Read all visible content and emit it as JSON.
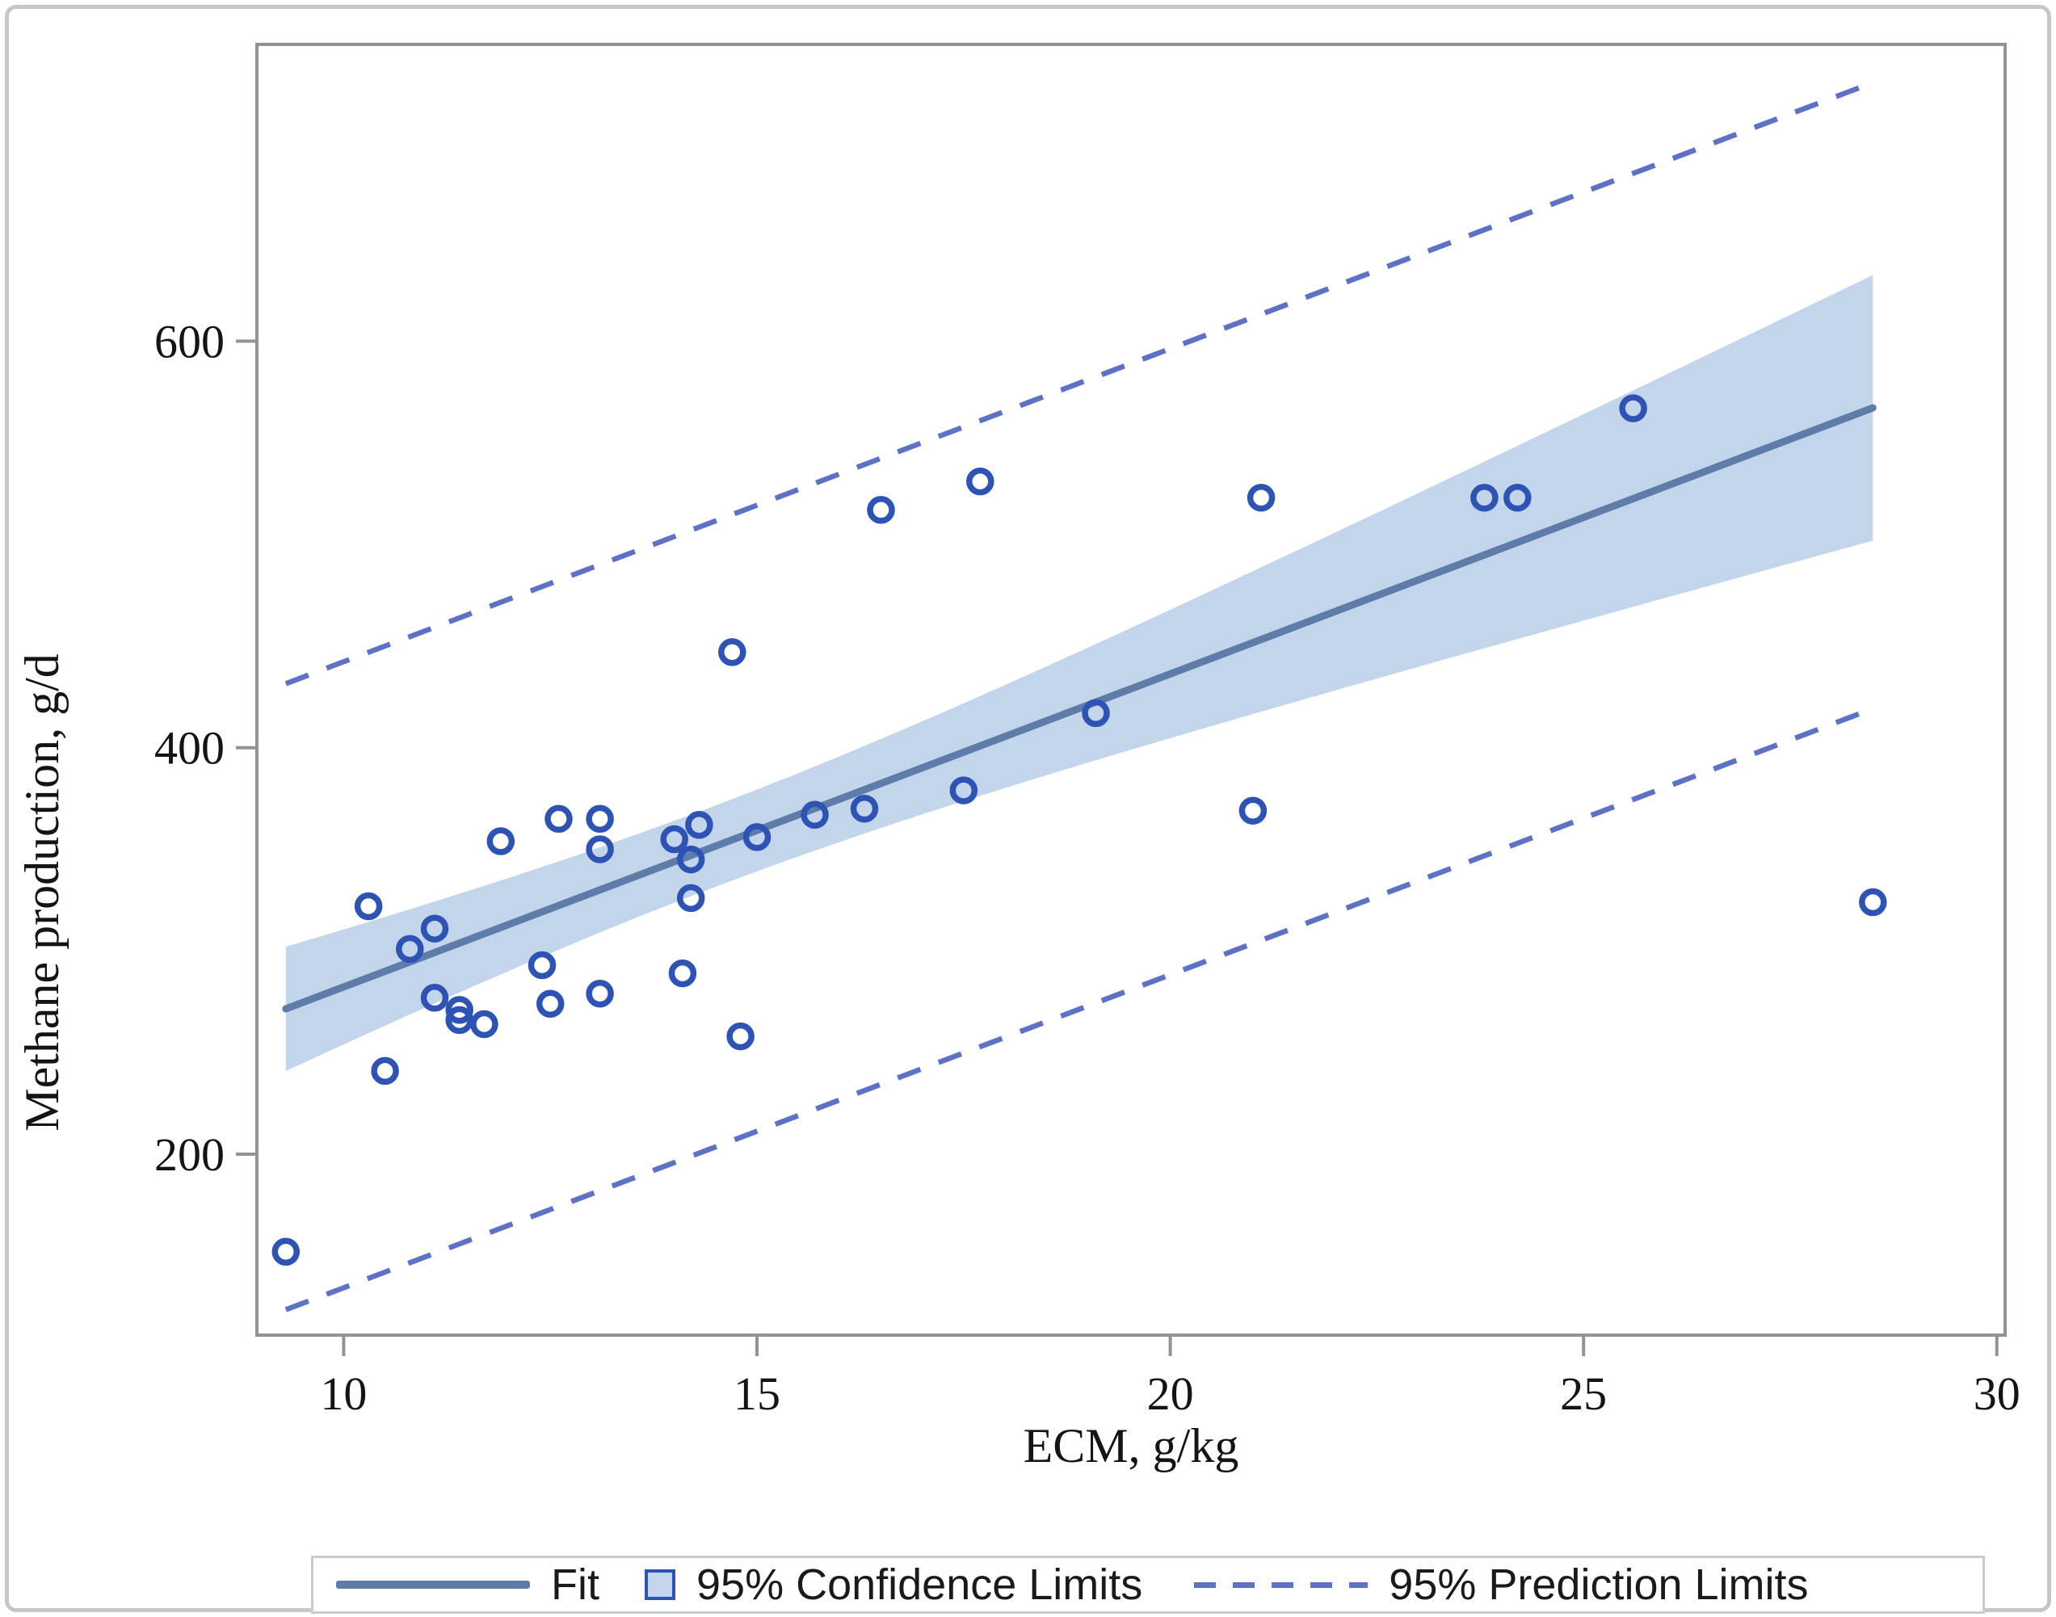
{
  "figure": {
    "xlabel": "ECM, g/kg",
    "ylabel": "Methane production, g/d"
  },
  "legend": {
    "fit_label": "Fit",
    "ci_label": "95% Confidence Limits",
    "pl_label": "95% Prediction Limits"
  },
  "chart_data": {
    "type": "scatter",
    "title": "",
    "xlabel": "ECM, g/kg",
    "ylabel": "Methane production, g/d",
    "x_ticks": [
      10,
      15,
      20,
      25,
      30
    ],
    "y_ticks": [
      200,
      400,
      600
    ],
    "xlim": [
      8.95,
      30.1
    ],
    "ylim": [
      111,
      746
    ],
    "grid": false,
    "legend_position": "bottom",
    "legend_entries": [
      "Fit",
      "95% Confidence Limits",
      "95% Prediction Limits"
    ],
    "points": [
      [
        9.3,
        152
      ],
      [
        10.3,
        322
      ],
      [
        10.5,
        241
      ],
      [
        10.8,
        301
      ],
      [
        11.1,
        311
      ],
      [
        11.1,
        277
      ],
      [
        11.4,
        271
      ],
      [
        11.4,
        266
      ],
      [
        11.7,
        264
      ],
      [
        11.9,
        354
      ],
      [
        12.4,
        293
      ],
      [
        12.5,
        274
      ],
      [
        12.6,
        365
      ],
      [
        13.1,
        365
      ],
      [
        13.1,
        350
      ],
      [
        13.1,
        279
      ],
      [
        14.0,
        355
      ],
      [
        14.1,
        289
      ],
      [
        14.2,
        345
      ],
      [
        14.2,
        326
      ],
      [
        14.3,
        362
      ],
      [
        14.7,
        447
      ],
      [
        14.8,
        258
      ],
      [
        15.0,
        356
      ],
      [
        15.7,
        367
      ],
      [
        16.3,
        370
      ],
      [
        16.5,
        517
      ],
      [
        17.5,
        379
      ],
      [
        17.7,
        531
      ],
      [
        19.1,
        417
      ],
      [
        21.0,
        369
      ],
      [
        21.1,
        523
      ],
      [
        23.8,
        523
      ],
      [
        24.2,
        523
      ],
      [
        25.6,
        567
      ],
      [
        28.5,
        324
      ]
    ],
    "fit": {
      "slope": 15.4,
      "intercept": 128.3,
      "x_range": [
        9.3,
        28.5
      ]
    },
    "confidence_band": {
      "halfwidth_min": 20,
      "center_x": 14.5,
      "spread": 4.5
    },
    "prediction_limits": {
      "upper_offset": 160,
      "lower_offset": -148
    },
    "colors": {
      "marker": "#2d53b5",
      "fit": "#5e7ca8",
      "band": "#c3d5eb",
      "dashed": "#5d72c6",
      "border": "#8f9496",
      "text": "#141414"
    }
  }
}
